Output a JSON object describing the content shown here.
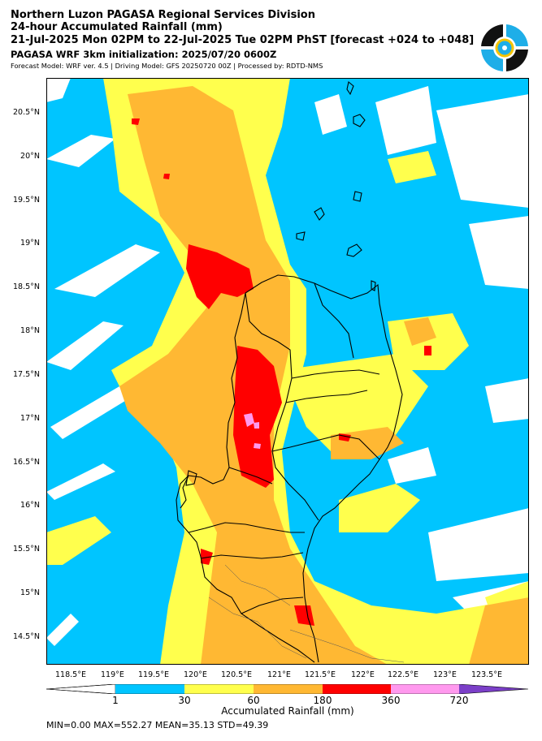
{
  "header": {
    "line1": "Northern Luzon PAGASA Regional Services Division",
    "line2": "24-hour Accumulated Rainfall (mm)",
    "line3": "21-Jul-2025 Mon 02PM to 22-Jul-2025 Tue 02PM PhST [forecast +024 to +048]",
    "line4": "PAGASA WRF 3km initialization: 2025/07/20 0600Z",
    "line5": "Forecast Model: WRF ver. 4.5 | Driving Model: GFS 20250720 00Z | Processed by: RDTD-NMS"
  },
  "logo": {
    "icon": "pagasa-logo-icon",
    "colors": [
      "#111111",
      "#1eaee8",
      "#f5c400"
    ]
  },
  "map": {
    "lon_range": [
      118.0,
      124.0
    ],
    "lat_range": [
      14.2,
      20.85
    ],
    "lat_ticks": [
      "20.5°N",
      "20°N",
      "19.5°N",
      "19°N",
      "18.5°N",
      "18°N",
      "17.5°N",
      "17°N",
      "16.5°N",
      "16°N",
      "15.5°N",
      "15°N",
      "14.5°N"
    ],
    "lat_values": [
      20.5,
      20.0,
      19.5,
      19.0,
      18.5,
      18.0,
      17.5,
      17.0,
      16.5,
      16.0,
      15.5,
      15.0,
      14.5
    ],
    "lon_ticks": [
      "118.5°E",
      "119°E",
      "119.5°E",
      "120°E",
      "120.5°E",
      "121°E",
      "121.5°E",
      "122°E",
      "122.5°E",
      "123°E",
      "123.5°E"
    ],
    "lon_values": [
      118.5,
      119.0,
      119.5,
      120.0,
      120.5,
      121.0,
      121.5,
      122.0,
      122.5,
      123.0,
      123.5
    ]
  },
  "colorbar": {
    "label": "Accumulated Rainfall (mm)",
    "ticks": [
      "1",
      "30",
      "60",
      "180",
      "360",
      "720"
    ],
    "colors": [
      "#ffffff",
      "#00c5ff",
      "#ffff4d",
      "#ffb833",
      "#ff0000",
      "#ff99ee",
      "#7b3fc8"
    ]
  },
  "stats": "MIN=0.00   MAX=552.27   MEAN=35.13   STD=49.39"
}
